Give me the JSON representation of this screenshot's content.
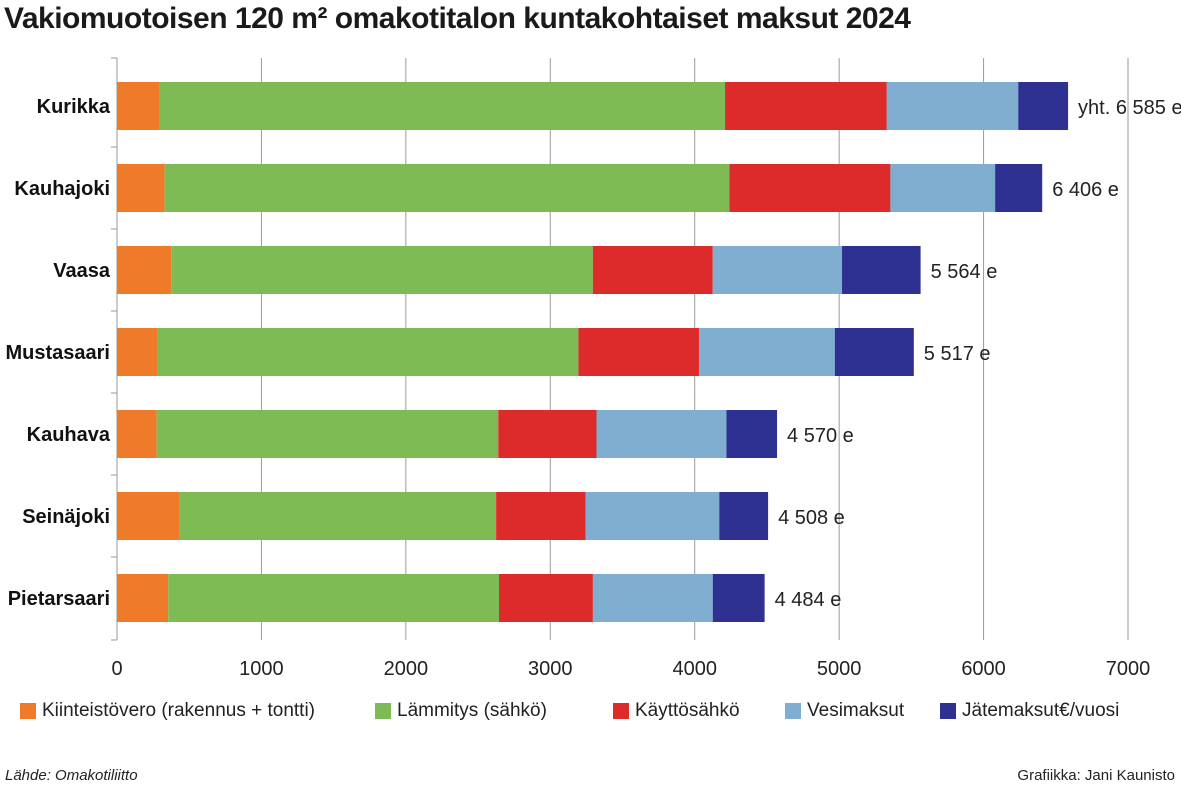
{
  "chart_data": {
    "type": "bar",
    "orientation": "horizontal",
    "stacked": true,
    "title": "Vakiomuotoisen 120 m² omakotitalon kuntakohtaiset maksut 2024",
    "categories": [
      "Kurikka",
      "Kauhajoki",
      "Vaasa",
      "Mustasaari",
      "Kauhava",
      "Seinäjoki",
      "Pietarsaari"
    ],
    "series": [
      {
        "name": "Kiinteistövero (rakennus + tontti)",
        "color": "#ee7a2a",
        "values": [
          295,
          330,
          375,
          280,
          275,
          435,
          355
        ]
      },
      {
        "name": "Lämmitys (sähkö)",
        "color": "#7fbb55",
        "values": [
          3915,
          3910,
          2920,
          2915,
          2365,
          2190,
          2290
        ]
      },
      {
        "name": "Käyttösähkö",
        "color": "#dd2a2b",
        "values": [
          1120,
          1115,
          830,
          835,
          680,
          620,
          650
        ]
      },
      {
        "name": "Vesimaksut",
        "color": "#80aed0",
        "values": [
          910,
          725,
          895,
          940,
          900,
          925,
          830
        ]
      },
      {
        "name": "Jätemaksut€/vuosi",
        "color": "#2e3192",
        "values": [
          345,
          326,
          544,
          547,
          350,
          338,
          359
        ]
      }
    ],
    "totals": [
      6585,
      6406,
      5564,
      5517,
      4570,
      4508,
      4484
    ],
    "total_labels": [
      "yht. 6 585 e",
      "6 406 e",
      "5 564 e",
      "5 517 e",
      "4 570 e",
      "4 508 e",
      "4 484 e"
    ],
    "xlim": [
      0,
      7000
    ],
    "xticks": [
      0,
      1000,
      2000,
      3000,
      4000,
      5000,
      6000,
      7000
    ],
    "xlabel": "",
    "ylabel": "",
    "grid": "vertical"
  },
  "source": "Lähde: Omakotiliitto",
  "credit": "Grafiikka: Jani Kaunisto"
}
